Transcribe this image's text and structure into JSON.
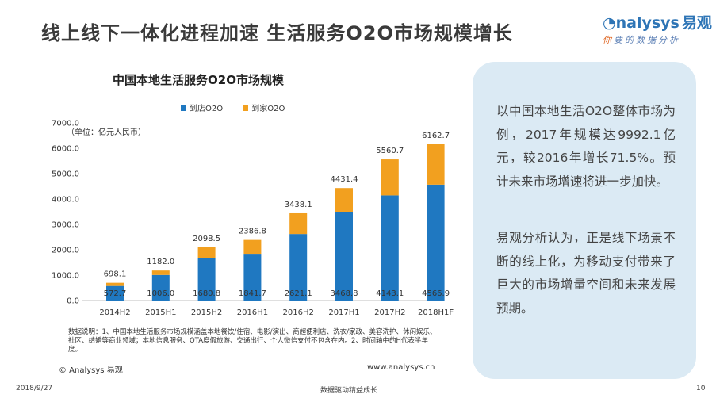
{
  "slide": {
    "title": "线上线下一体化进程加速   生活服务O2O市场规模增长",
    "logo_name": "nalysys",
    "logo_cn": "易观",
    "logo_slogan_first": "你",
    "logo_slogan_rest": "要的数据分析",
    "date": "2018/9/27",
    "footer_center": "数据驱动精益成长",
    "page_number": "10"
  },
  "chart_data": {
    "type": "bar",
    "stacked": true,
    "title": "中国本地生活服务O2O市场规模",
    "unit_label": "（单位：亿元人民币）",
    "categories": [
      "2014H2",
      "2015H1",
      "2015H2",
      "2016H1",
      "2016H2",
      "2017H1",
      "2017H2",
      "2018H1F"
    ],
    "series": [
      {
        "name": "到店O2O",
        "color": "#1f78c1",
        "values": [
          572.7,
          1006.0,
          1680.8,
          1841.7,
          2621.1,
          3468.8,
          4143.1,
          4566.9
        ]
      },
      {
        "name": "到家O2O",
        "color": "#f2a01f",
        "values": [
          125.4,
          176.0,
          417.7,
          545.1,
          817.0,
          962.6,
          1417.6,
          1595.8
        ]
      }
    ],
    "totals": [
      "698.1",
      "1182.0",
      "2098.5",
      "2386.8",
      "3438.1",
      "4431.4",
      "5560.7",
      "6162.7"
    ],
    "bottom_labels": [
      "572.7",
      "1006.0",
      "1680.8",
      "1841.7",
      "2621.1",
      "3468.8",
      "4143.1",
      "4566.9"
    ],
    "ylim": [
      0,
      7000
    ],
    "yticks": [
      "0.0",
      "1000.0",
      "2000.0",
      "3000.0",
      "4000.0",
      "5000.0",
      "6000.0",
      "7000.0"
    ],
    "grid": false,
    "legend_position": "top"
  },
  "notes": "数据说明：1、中国本地生活服务市场规模涵盖本地餐饮/住宿、电影/演出、商超便利店、洗衣/家政、美容洗护、休闲娱乐、社区、结婚等商业领域；本地信息服务、OTA度假旅游、交通出行、个人微信支付不包含在内。2、时间轴中的H代表半年度。",
  "copyright": "© Analysys 易观",
  "website": "www.analysys.cn",
  "sidebar": {
    "paragraph1": "以中国本地生活O2O整体市场为例，2017年规模达9992.1亿元，较2016年增长71.5%。预计未来市场增速将进一步加快。",
    "paragraph2": "易观分析认为，正是线下场景不断的线上化，为移动支付带来了巨大的市场增量空间和未来发展预期。"
  }
}
